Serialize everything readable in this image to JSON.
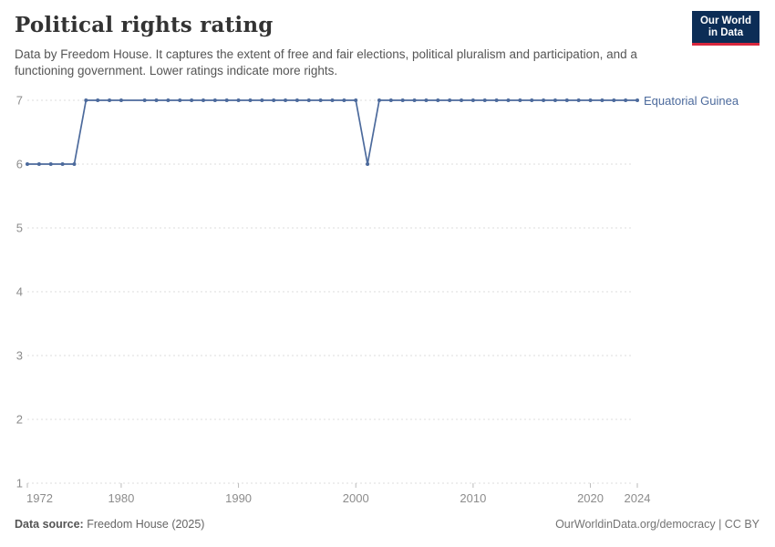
{
  "header": {
    "title": "Political rights rating",
    "subtitle": "Data by Freedom House. It captures the extent of free and fair elections, political pluralism and participation, and a functioning government. Lower ratings indicate more rights."
  },
  "logo": {
    "line1": "Our World",
    "line2": "in Data"
  },
  "entity_label": "Equatorial Guinea",
  "footer": {
    "source_label": "Data source:",
    "source_value": "Freedom House (2025)",
    "right_text": "OurWorldinData.org/democracy | CC BY"
  },
  "colors": {
    "line": "#4C6A9C",
    "entity_label": "#4C6A9C",
    "grid": "#dddddd",
    "tick_text": "#8c8c8c",
    "tick_mark": "#bbbbbb",
    "logo_bg": "#0c2d56",
    "logo_red": "#d8273d"
  },
  "chart_data": {
    "type": "line",
    "title": "Political rights rating",
    "xlabel": "",
    "ylabel": "",
    "xlim": [
      1972,
      2024
    ],
    "ylim": [
      1,
      7
    ],
    "x_ticks": [
      1972,
      1980,
      1990,
      2000,
      2010,
      2020,
      2024
    ],
    "y_ticks": [
      1,
      2,
      3,
      4,
      5,
      6,
      7
    ],
    "grid": "horizontal-dashed",
    "legend_position": "end-of-line-label",
    "series": [
      {
        "name": "Equatorial Guinea",
        "x": [
          1972,
          1973,
          1974,
          1975,
          1976,
          1977,
          1978,
          1979,
          1980,
          1981,
          1982,
          1983,
          1984,
          1985,
          1986,
          1987,
          1988,
          1989,
          1990,
          1991,
          1992,
          1993,
          1994,
          1995,
          1996,
          1997,
          1998,
          1999,
          2000,
          2001,
          2002,
          2003,
          2004,
          2005,
          2006,
          2007,
          2008,
          2009,
          2010,
          2011,
          2012,
          2013,
          2014,
          2015,
          2016,
          2017,
          2018,
          2019,
          2020,
          2021,
          2022,
          2023,
          2024
        ],
        "values": [
          6,
          6,
          6,
          6,
          6,
          7,
          7,
          7,
          7,
          null,
          7,
          7,
          7,
          7,
          7,
          7,
          7,
          7,
          7,
          7,
          7,
          7,
          7,
          7,
          7,
          7,
          7,
          7,
          7,
          6,
          7,
          7,
          7,
          7,
          7,
          7,
          7,
          7,
          7,
          7,
          7,
          7,
          7,
          7,
          7,
          7,
          7,
          7,
          7,
          7,
          7,
          7,
          7
        ]
      }
    ]
  }
}
